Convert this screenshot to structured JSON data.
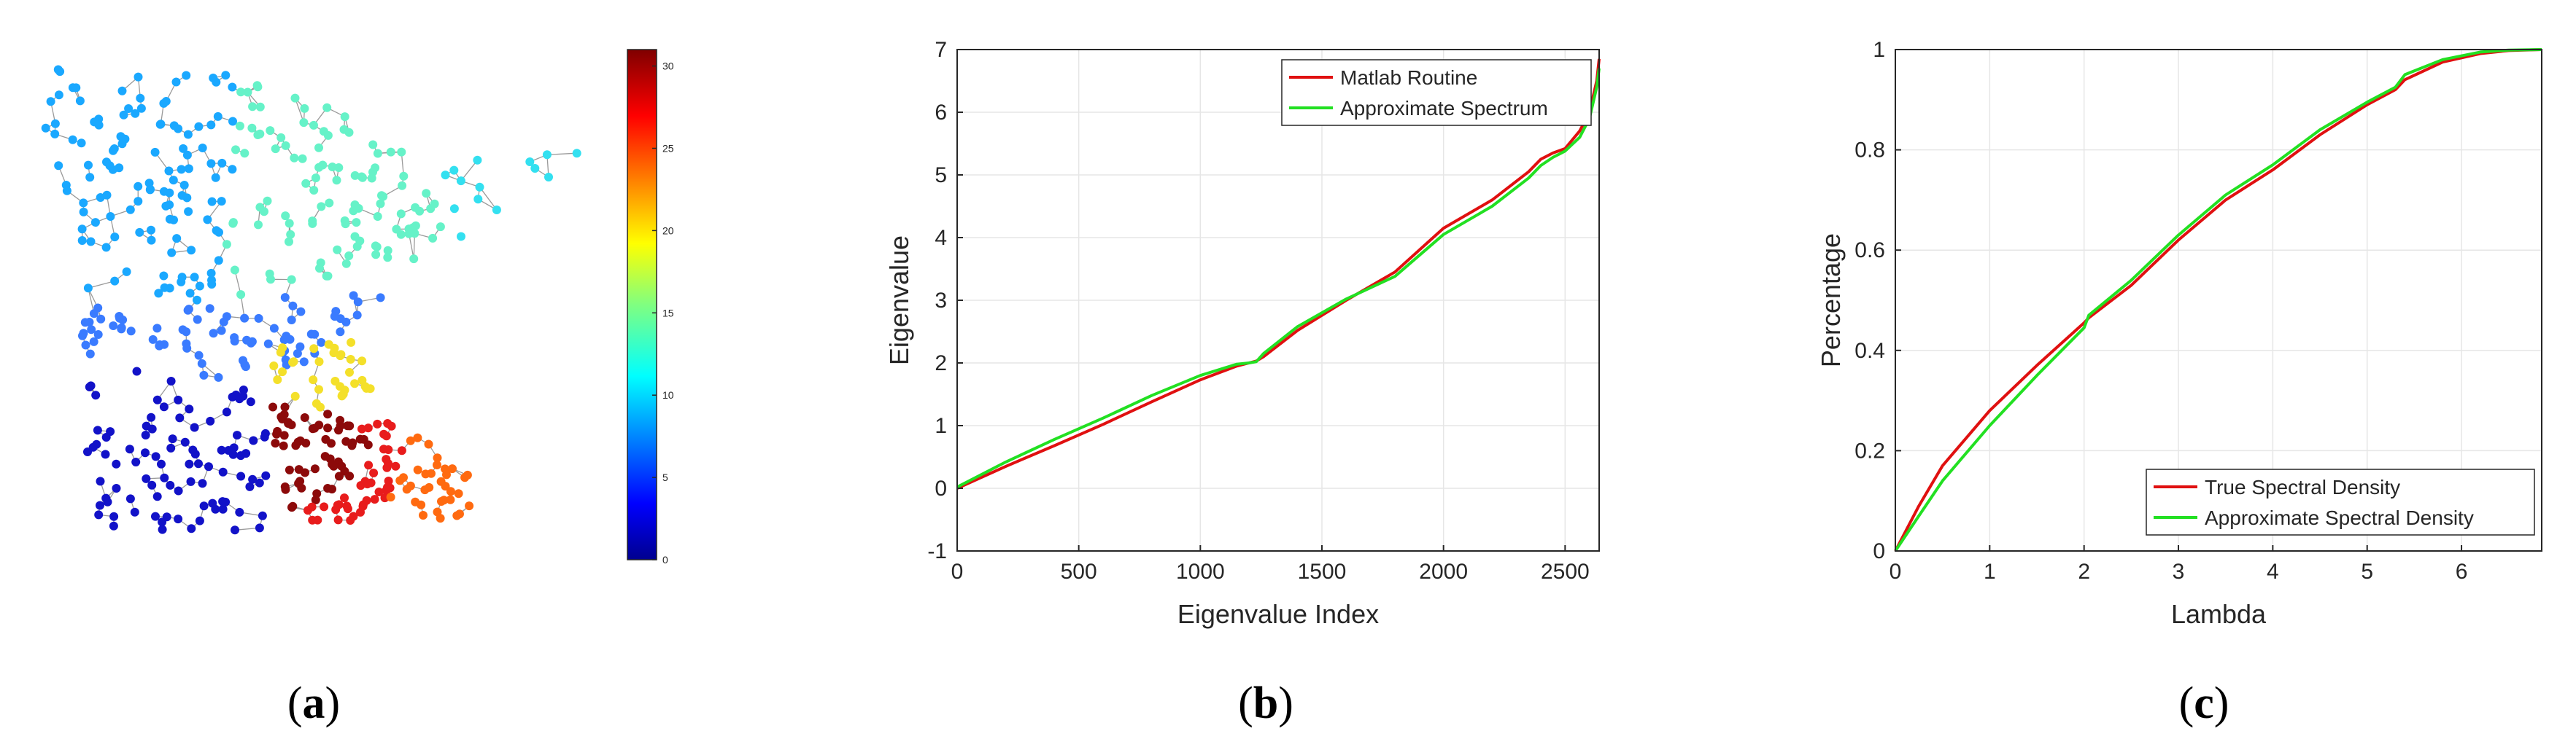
{
  "panels": [
    {
      "caption_open": "(",
      "caption_letter": "a",
      "caption_close": ")"
    },
    {
      "caption_open": "(",
      "caption_letter": "b",
      "caption_close": ")"
    },
    {
      "caption_open": "(",
      "caption_letter": "c",
      "caption_close": ")"
    }
  ],
  "chart_data": [
    {
      "type": "other",
      "subtype": "graph-partition",
      "description_of_marks": "nodes colored by partition index",
      "colorbar": {
        "colormap": "jet",
        "ticks": [
          0,
          5,
          10,
          15,
          20,
          25,
          30
        ],
        "range": [
          0,
          31
        ]
      }
    },
    {
      "type": "line",
      "title": "",
      "xlabel": "Eigenvalue Index",
      "ylabel": "Eigenvalue",
      "xlim": [
        0,
        2640
      ],
      "ylim": [
        -1,
        7
      ],
      "xticks": [
        0,
        500,
        1000,
        1500,
        2000,
        2500
      ],
      "yticks": [
        -1,
        0,
        1,
        2,
        3,
        4,
        5,
        6,
        7
      ],
      "grid": true,
      "legend_position": "top-right",
      "series": [
        {
          "name": "Matlab Routine",
          "color": "#e01010",
          "x": [
            0,
            200,
            400,
            600,
            800,
            1000,
            1150,
            1200,
            1230,
            1260,
            1400,
            1600,
            1800,
            2000,
            2200,
            2350,
            2400,
            2450,
            2500,
            2560,
            2600,
            2630,
            2640
          ],
          "y": [
            0,
            0.35,
            0.68,
            1.02,
            1.38,
            1.73,
            1.95,
            2.0,
            2.03,
            2.1,
            2.52,
            3.0,
            3.45,
            4.15,
            4.6,
            5.05,
            5.25,
            5.35,
            5.42,
            5.7,
            6.0,
            6.5,
            6.85
          ]
        },
        {
          "name": "Approximate Spectrum",
          "color": "#22e022",
          "x": [
            0,
            200,
            400,
            600,
            800,
            1000,
            1150,
            1200,
            1230,
            1260,
            1400,
            1600,
            1800,
            2000,
            2200,
            2350,
            2400,
            2450,
            2500,
            2560,
            2600,
            2630,
            2640
          ],
          "y": [
            0.02,
            0.42,
            0.78,
            1.12,
            1.48,
            1.8,
            1.98,
            2.0,
            2.02,
            2.15,
            2.58,
            3.02,
            3.38,
            4.05,
            4.5,
            4.95,
            5.15,
            5.28,
            5.38,
            5.6,
            5.9,
            6.4,
            6.7
          ]
        }
      ]
    },
    {
      "type": "line",
      "title": "",
      "xlabel": "Lambda",
      "ylabel": "Percentage",
      "xlim": [
        0,
        6.85
      ],
      "ylim": [
        0,
        1
      ],
      "xticks": [
        0,
        1,
        2,
        3,
        4,
        5,
        6
      ],
      "yticks": [
        0,
        0.2,
        0.4,
        0.6,
        0.8,
        1
      ],
      "grid": true,
      "legend_position": "bottom-right",
      "series": [
        {
          "name": "True Spectral Density",
          "color": "#e01010",
          "x": [
            0,
            0.25,
            0.5,
            1.0,
            1.5,
            2.0,
            2.05,
            2.5,
            3.0,
            3.5,
            4.0,
            4.5,
            5.0,
            5.3,
            5.4,
            5.8,
            6.2,
            6.5,
            6.85
          ],
          "y": [
            0,
            0.09,
            0.17,
            0.28,
            0.37,
            0.455,
            0.465,
            0.53,
            0.62,
            0.7,
            0.76,
            0.83,
            0.89,
            0.92,
            0.94,
            0.975,
            0.992,
            0.998,
            1.0
          ]
        },
        {
          "name": "Approximate Spectral Density",
          "color": "#22e022",
          "x": [
            0,
            0.25,
            0.5,
            1.0,
            1.5,
            2.0,
            2.05,
            2.5,
            3.0,
            3.5,
            4.0,
            4.5,
            5.0,
            5.3,
            5.4,
            5.8,
            6.2,
            6.5,
            6.85
          ],
          "y": [
            0,
            0.07,
            0.14,
            0.25,
            0.35,
            0.445,
            0.47,
            0.54,
            0.63,
            0.71,
            0.77,
            0.84,
            0.895,
            0.925,
            0.95,
            0.98,
            0.995,
            0.999,
            1.0
          ]
        }
      ]
    }
  ]
}
